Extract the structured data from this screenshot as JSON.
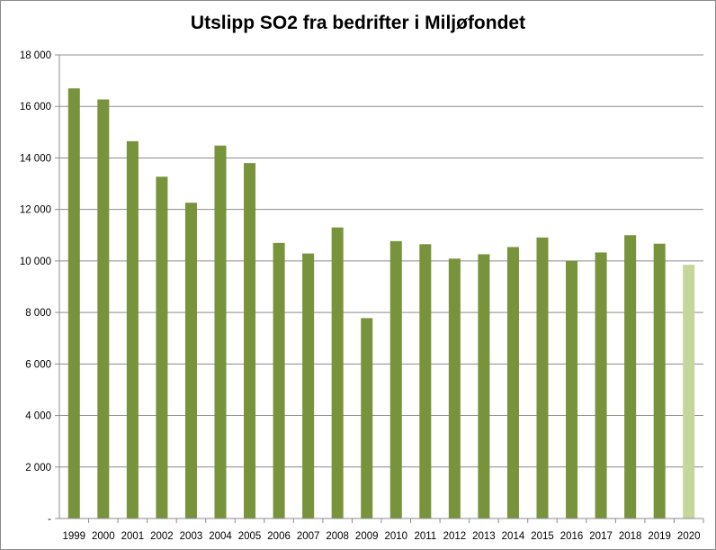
{
  "chart_data": {
    "type": "bar",
    "title": "Utslipp SO2 fra bedrifter i Miljøfondet",
    "categories": [
      "1999",
      "2000",
      "2001",
      "2002",
      "2003",
      "2004",
      "2005",
      "2006",
      "2007",
      "2008",
      "2009",
      "2010",
      "2011",
      "2012",
      "2013",
      "2014",
      "2015",
      "2016",
      "2017",
      "2018",
      "2019",
      "2020"
    ],
    "values": [
      16700,
      16270,
      14650,
      13270,
      12260,
      14480,
      13800,
      10700,
      10290,
      11300,
      7780,
      10770,
      10650,
      10090,
      10260,
      10540,
      10910,
      10000,
      10330,
      11000,
      10670,
      9850
    ],
    "ylim": [
      0,
      18000
    ],
    "yticks": [
      0,
      2000,
      4000,
      6000,
      8000,
      10000,
      12000,
      14000,
      16000,
      18000
    ],
    "ytick_labels": [
      "-",
      "2 000",
      "4 000",
      "6 000",
      "8 000",
      "10 000",
      "12 000",
      "14 000",
      "16 000",
      "18 000"
    ],
    "grid": true,
    "colors": {
      "bar": "#77933c",
      "highlight_bar": "#c3d69b",
      "grid": "#8c8c8c"
    },
    "highlight_category": "2020"
  }
}
